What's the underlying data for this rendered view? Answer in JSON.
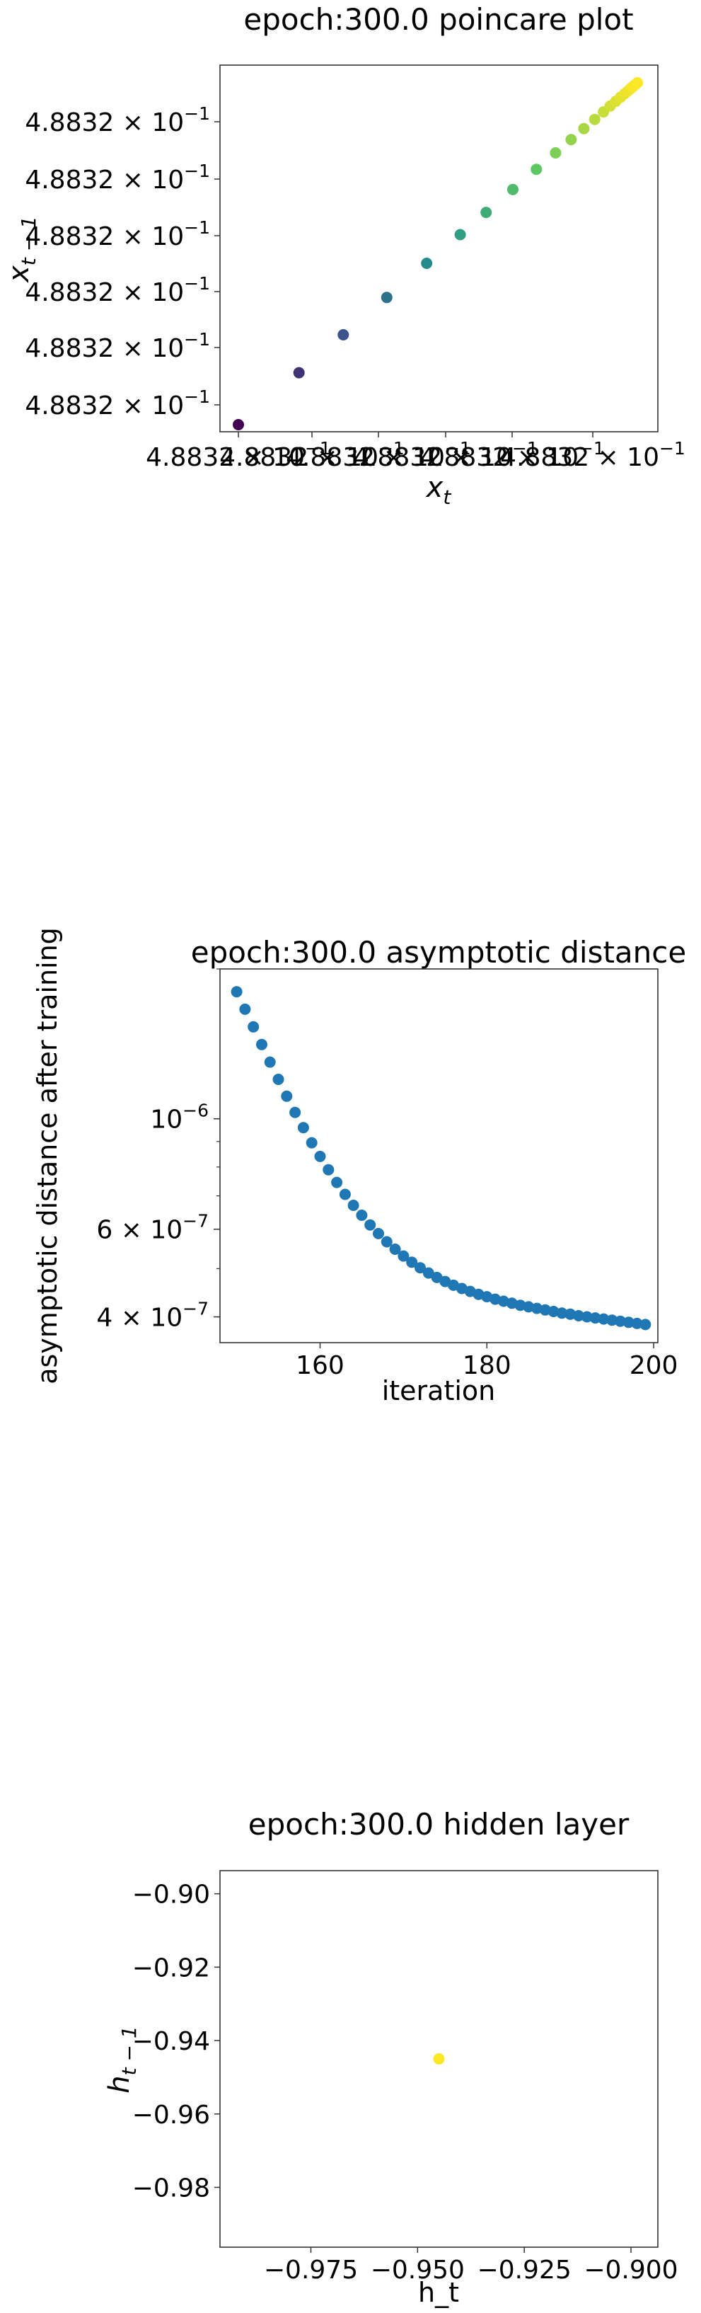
{
  "chart_data": [
    {
      "type": "scatter",
      "title": "epoch:300.0 poincare plot",
      "xlabel": "x_t",
      "ylabel": "x_{t-1}",
      "colormap": "viridis",
      "grid": false,
      "yticks": [
        "4.8832 × 10^{-1}",
        "4.8832 × 10^{-1}",
        "4.8832 × 10^{-1}",
        "4.8832 × 10^{-1}",
        "4.8832 × 10^{-1}",
        "4.8832 × 10^{-1}"
      ],
      "xticks": [
        "4.8832 × 10^{-1}",
        "4.8832 × 10^{-1}",
        "4.8832 × 10^{-1}",
        "4.8832 × 10^{-1}",
        "4.8832 × 10^{-1}",
        "4.8832 × 10^{-1}"
      ],
      "points_t": [
        0.0,
        0.152,
        0.263,
        0.372,
        0.472,
        0.556,
        0.621,
        0.688,
        0.747,
        0.795,
        0.834,
        0.866,
        0.893,
        0.915,
        0.932,
        0.946,
        0.958,
        0.968,
        0.976,
        0.983,
        0.988,
        0.993,
        1.0
      ]
    },
    {
      "type": "scatter",
      "title": "epoch:300.0 asymptotic distance",
      "xlabel": "iteration",
      "ylabel": "asymptotic distance after training",
      "yscale": "log",
      "xlim": [
        148,
        200.5
      ],
      "ylim": [
        3.55e-07,
        2e-06
      ],
      "xticks": [
        160,
        180,
        200
      ],
      "yticks": [
        {
          "value": 1e-06,
          "label": "10^{-6}"
        },
        {
          "value": 6e-07,
          "label": "6 × 10^{-7}"
        },
        {
          "value": 4e-07,
          "label": "4 × 10^{-7}"
        }
      ],
      "color": "#1f77b4",
      "x": [
        150,
        151,
        152,
        153,
        154,
        155,
        156,
        157,
        158,
        159,
        160,
        161,
        162,
        163,
        164,
        165,
        166,
        167,
        168,
        169,
        170,
        171,
        172,
        173,
        174,
        175,
        176,
        177,
        178,
        179,
        180,
        181,
        182,
        183,
        184,
        185,
        186,
        187,
        188,
        189,
        190,
        191,
        192,
        193,
        194,
        195,
        196,
        197,
        198,
        199
      ],
      "y": [
        1.8e-06,
        1.66e-06,
        1.53e-06,
        1.41e-06,
        1.3e-06,
        1.2e-06,
        1.11e-06,
        1.03e-06,
        9.6e-07,
        8.95e-07,
        8.4e-07,
        7.9e-07,
        7.45e-07,
        7.05e-07,
        6.7e-07,
        6.4e-07,
        6.12e-07,
        5.88e-07,
        5.66e-07,
        5.47e-07,
        5.3e-07,
        5.15e-07,
        5.02e-07,
        4.9e-07,
        4.8e-07,
        4.71e-07,
        4.63e-07,
        4.56e-07,
        4.5e-07,
        4.44e-07,
        4.39e-07,
        4.34e-07,
        4.3e-07,
        4.26e-07,
        4.22e-07,
        4.19e-07,
        4.16e-07,
        4.13e-07,
        4.1e-07,
        4.07e-07,
        4.05e-07,
        4.02e-07,
        4e-07,
        3.98e-07,
        3.96e-07,
        3.94e-07,
        3.92e-07,
        3.9e-07,
        3.88e-07,
        3.86e-07
      ]
    },
    {
      "type": "scatter",
      "title": "epoch:300.0 hidden layer",
      "xlabel": "h_t",
      "ylabel": "h_{t-1}",
      "xlim": [
        -0.9963,
        -0.8937
      ],
      "ylim": [
        -0.9963,
        -0.8937
      ],
      "xticks": [
        -0.975,
        -0.95,
        -0.925,
        -0.9
      ],
      "xtick_labels": [
        "−0.975",
        "−0.950",
        "−0.925",
        "−0.900"
      ],
      "yticks": [
        -0.9,
        -0.92,
        -0.94,
        -0.96,
        -0.98
      ],
      "ytick_labels": [
        "−0.90",
        "−0.92",
        "−0.94",
        "−0.96",
        "−0.98"
      ],
      "color": "#fde725",
      "points": [
        {
          "x": -0.945,
          "y": -0.945
        }
      ]
    }
  ]
}
